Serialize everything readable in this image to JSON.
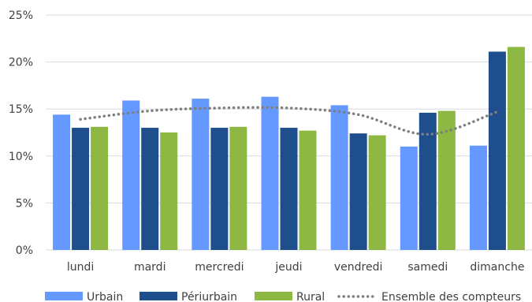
{
  "chart_data": {
    "type": "bar",
    "categories": [
      "lundi",
      "mardi",
      "mercredi",
      "jeudi",
      "vendredi",
      "samedi",
      "dimanche"
    ],
    "series": [
      {
        "name": "Urbain",
        "type": "bar",
        "color": "#6699FF",
        "values": [
          14.4,
          15.9,
          16.1,
          16.3,
          15.4,
          11.0,
          11.1
        ]
      },
      {
        "name": "Périurbain",
        "type": "bar",
        "color": "#1F4E8C",
        "values": [
          13.0,
          13.0,
          13.0,
          13.0,
          12.4,
          14.6,
          21.1
        ]
      },
      {
        "name": "Rural",
        "type": "bar",
        "color": "#8DB843",
        "values": [
          13.1,
          12.5,
          13.1,
          12.7,
          12.2,
          14.8,
          21.6
        ]
      },
      {
        "name": "Ensemble des compteurs",
        "type": "line",
        "style": "dotted",
        "color": "#7F7F7F",
        "values": [
          13.9,
          14.8,
          15.1,
          15.1,
          14.4,
          12.3,
          14.7
        ]
      }
    ],
    "y_ticks": [
      "0%",
      "5%",
      "10%",
      "15%",
      "20%",
      "25%"
    ],
    "ylim": [
      0,
      25
    ],
    "y_unit": "percent",
    "grid": true,
    "legend_position": "bottom",
    "gridline_color": "#D9D9D9"
  }
}
